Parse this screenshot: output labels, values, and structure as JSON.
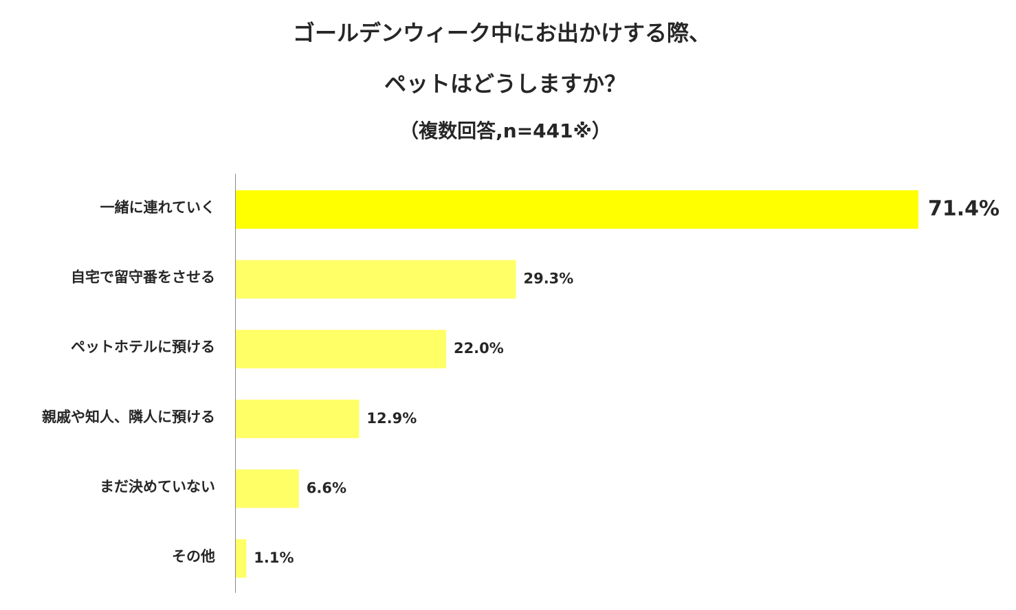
{
  "chart_data": {
    "type": "hbar",
    "title": [
      "ゴールデンウィーク中にお出かけする際、",
      "ペットはどうしますか？"
    ],
    "subtitle": "（複数回答,n=441※）",
    "categories": [
      "一緒に連れていく",
      "自宅で留守番をさせる",
      "ペットホテルに預ける",
      "親戚や知人、隣人に預ける",
      "まだ決めていない",
      "その他"
    ],
    "values": [
      71.4,
      29.3,
      22.0,
      12.9,
      6.6,
      1.1
    ],
    "value_labels": [
      "71.4%",
      "29.3%",
      "22.0%",
      "12.9%",
      "6.6%",
      "1.1%"
    ],
    "colors": [
      "#ffff00",
      "#ffff66",
      "#ffff66",
      "#ffff66",
      "#ffff66",
      "#ffff66"
    ]
  }
}
